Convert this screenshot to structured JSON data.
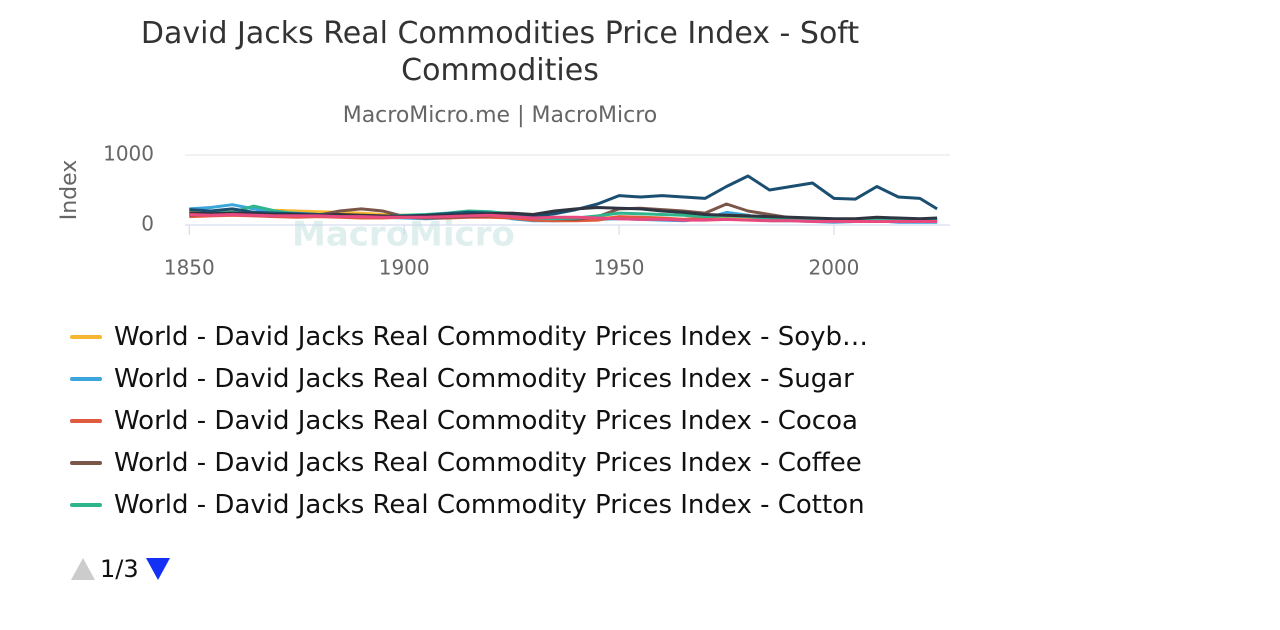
{
  "chart_data": {
    "type": "line",
    "title": "David Jacks Real Commodities Price Index - Soft Commodities",
    "subtitle": "MacroMicro.me | MacroMicro",
    "y_label": "Index",
    "watermark": "MacroMicro",
    "legend_page": "1/3",
    "x": [
      1850,
      1855,
      1860,
      1865,
      1870,
      1875,
      1880,
      1885,
      1890,
      1895,
      1900,
      1905,
      1910,
      1915,
      1920,
      1925,
      1930,
      1935,
      1940,
      1945,
      1950,
      1955,
      1960,
      1965,
      1970,
      1975,
      1980,
      1985,
      1990,
      1995,
      2000,
      2005,
      2010,
      2015,
      2020,
      2024
    ],
    "xlim": [
      1849,
      2027
    ],
    "xticks": [
      1850,
      1900,
      1950,
      2000
    ],
    "ylim": [
      0,
      1000
    ],
    "yticks": [
      0,
      1000
    ],
    "grid": true,
    "series": [
      {
        "name": "World - David Jacks Real Commodity Prices Index - Soyb…",
        "color": "#f5b731",
        "values": [
          190,
          180,
          200,
          170,
          210,
          200,
          190,
          180,
          170,
          150,
          140,
          130,
          120,
          130,
          120,
          110,
          90,
          80,
          90,
          100,
          110,
          100,
          90,
          80,
          90,
          120,
          100,
          80,
          70,
          60,
          50,
          60,
          70,
          60,
          60,
          60
        ]
      },
      {
        "name": "World - David Jacks Real Commodity Prices Index - Sugar",
        "color": "#3aa6db",
        "values": [
          230,
          250,
          290,
          230,
          180,
          170,
          150,
          140,
          120,
          110,
          100,
          90,
          100,
          130,
          150,
          90,
          60,
          60,
          70,
          80,
          90,
          80,
          70,
          60,
          90,
          180,
          140,
          60,
          60,
          50,
          40,
          50,
          60,
          40,
          40,
          40
        ]
      },
      {
        "name": "World - David Jacks Real Commodity Prices Index - Cocoa",
        "color": "#e05a3e",
        "values": [
          120,
          130,
          140,
          130,
          120,
          110,
          120,
          110,
          100,
          100,
          110,
          100,
          100,
          110,
          110,
          100,
          70,
          60,
          60,
          70,
          120,
          110,
          100,
          80,
          100,
          140,
          130,
          90,
          70,
          70,
          50,
          60,
          70,
          60,
          60,
          80
        ]
      },
      {
        "name": "World - David Jacks Real Commodity Prices Index - Coffee",
        "color": "#7b5548",
        "values": [
          140,
          150,
          160,
          140,
          130,
          150,
          140,
          200,
          230,
          200,
          120,
          100,
          110,
          120,
          130,
          150,
          110,
          90,
          80,
          120,
          230,
          240,
          220,
          200,
          170,
          300,
          200,
          150,
          100,
          90,
          80,
          70,
          90,
          80,
          70,
          90
        ]
      },
      {
        "name": "World - David Jacks Real Commodity Prices Index - Cotton",
        "color": "#2fb58e",
        "values": [
          160,
          170,
          180,
          270,
          200,
          160,
          150,
          140,
          130,
          120,
          140,
          150,
          170,
          200,
          190,
          160,
          100,
          90,
          100,
          130,
          170,
          160,
          150,
          140,
          120,
          130,
          120,
          90,
          80,
          80,
          70,
          60,
          80,
          70,
          60,
          70
        ]
      },
      {
        "color": "#1b4f72",
        "values": [
          220,
          200,
          230,
          180,
          170,
          160,
          150,
          140,
          130,
          120,
          130,
          140,
          160,
          180,
          170,
          150,
          120,
          160,
          220,
          300,
          420,
          400,
          420,
          400,
          380,
          550,
          700,
          500,
          550,
          600,
          380,
          370,
          550,
          400,
          380,
          230
        ]
      },
      {
        "color": "#2e3440",
        "values": [
          170,
          160,
          170,
          160,
          150,
          150,
          140,
          150,
          140,
          130,
          120,
          130,
          140,
          150,
          160,
          170,
          150,
          200,
          230,
          250,
          240,
          230,
          200,
          180,
          150,
          140,
          130,
          120,
          110,
          100,
          90,
          90,
          110,
          100,
          90,
          100
        ]
      },
      {
        "color": "#e84a7f",
        "values": [
          150,
          140,
          150,
          140,
          130,
          130,
          130,
          120,
          120,
          110,
          110,
          110,
          120,
          130,
          140,
          120,
          100,
          110,
          110,
          100,
          90,
          80,
          80,
          70,
          70,
          80,
          70,
          60,
          60,
          50,
          50,
          50,
          50,
          50,
          50,
          50
        ]
      }
    ]
  }
}
